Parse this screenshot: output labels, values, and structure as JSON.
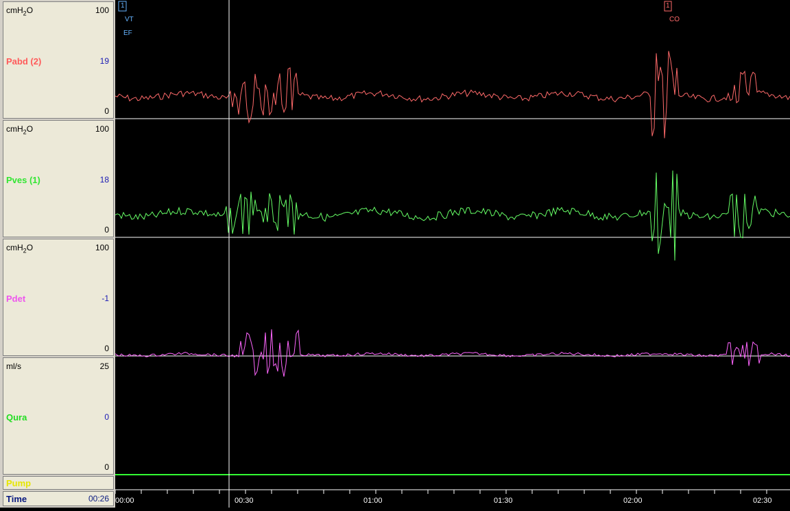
{
  "channels": [
    {
      "unit_base": "cmH",
      "unit_sub": "2",
      "unit_suffix": "O",
      "max": "100",
      "mid": "19",
      "min": "0",
      "name": "Pabd (2)",
      "color": "#ff6a6a"
    },
    {
      "unit_base": "cmH",
      "unit_sub": "2",
      "unit_suffix": "O",
      "max": "100",
      "mid": "18",
      "min": "0",
      "name": "Pves (1)",
      "color": "#66ff66"
    },
    {
      "unit_base": "cmH",
      "unit_sub": "2",
      "unit_suffix": "O",
      "max": "100",
      "mid": "-1",
      "min": "0",
      "name": "Pdet",
      "color": "#ff66ff"
    },
    {
      "unit_base": "ml/s",
      "unit_sub": "",
      "unit_suffix": "",
      "max": "25",
      "mid": "0",
      "min": "0",
      "name": "Qura",
      "color": "#33ff33"
    }
  ],
  "pump_label": "Pump",
  "time_label": "Time",
  "time_value": "00:26",
  "time_ticks": [
    "00:00",
    "00:30",
    "01:00",
    "01:30",
    "02:00",
    "02:30"
  ],
  "events": [
    {
      "marker": "1",
      "code": "VT",
      "sub": "EF"
    },
    {
      "marker": "1",
      "code": "CO"
    }
  ],
  "colors": {
    "pabd": "#ff6a6a",
    "pves": "#66ff66",
    "pdet": "#ff66ff",
    "qura": "#33ff33",
    "pump": "#ffff33",
    "cursor": "#ffffff",
    "event": "#66b4ff",
    "event2": "#ff6a6a"
  }
}
